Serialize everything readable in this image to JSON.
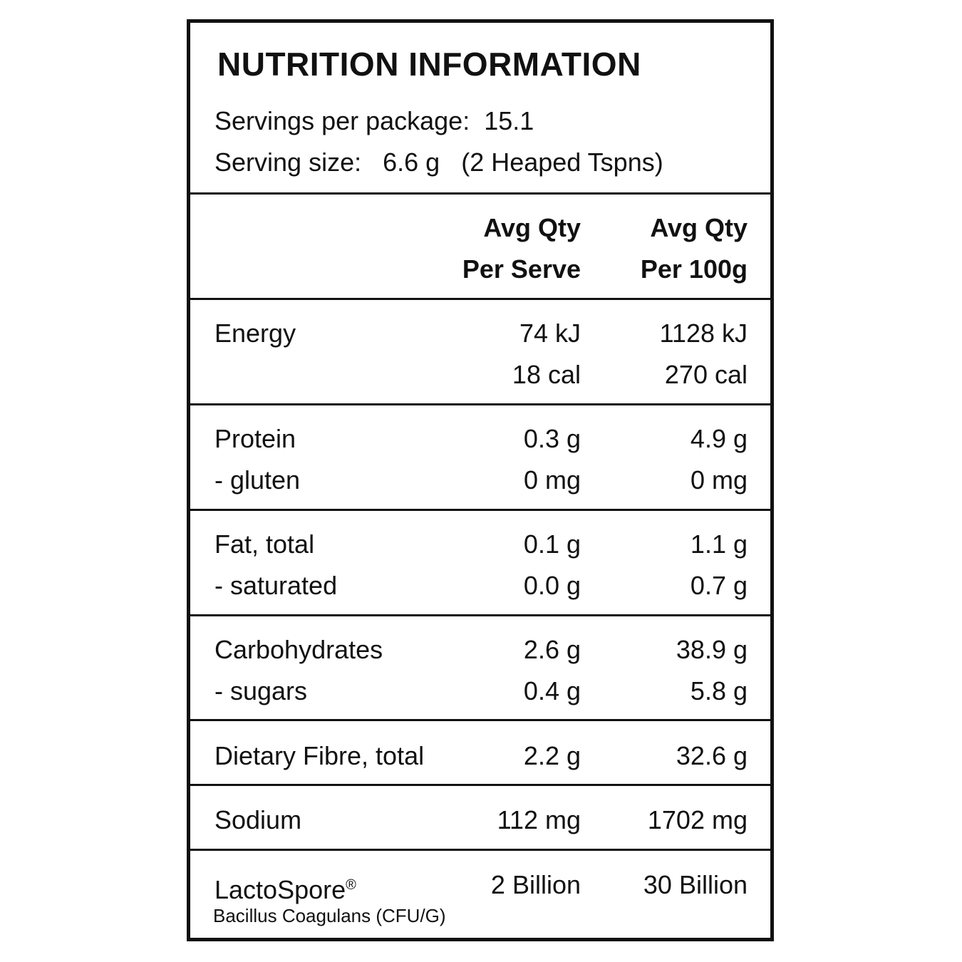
{
  "title": "NUTRITION INFORMATION",
  "servings_label": "Servings per package:",
  "servings_value": "15.1",
  "serving_size_label": "Serving size:",
  "serving_size_value": "6.6 g",
  "serving_size_note": "(2 Heaped Tspns)",
  "columns": [
    {
      "line1": "Avg Qty",
      "line2": "Per Serve"
    },
    {
      "line1": "Avg Qty",
      "line2": "Per 100g"
    }
  ],
  "rows": [
    {
      "label": "Energy",
      "serve": "74 kJ",
      "per100": "1128 kJ",
      "label2": "",
      "serve2": "18 cal",
      "per1002": "270 cal"
    },
    {
      "label": "Protein",
      "serve": "0.3 g",
      "per100": "4.9 g",
      "label2": "-  gluten",
      "serve2": "0 mg",
      "per1002": "0 mg"
    },
    {
      "label": "Fat, total",
      "serve": "0.1 g",
      "per100": "1.1 g",
      "label2": "-  saturated",
      "serve2": "0.0 g",
      "per1002": "0.7 g"
    },
    {
      "label": "Carbohydrates",
      "serve": "2.6 g",
      "per100": "38.9 g",
      "label2": "-  sugars",
      "serve2": "0.4 g",
      "per1002": "5.8 g"
    },
    {
      "label": "Dietary Fibre, total",
      "serve": "2.2 g",
      "per100": "32.6 g"
    },
    {
      "label": "Sodium",
      "serve": "112 mg",
      "per100": "1702 mg"
    },
    {
      "label": "LactoSpore",
      "mark": "®",
      "serve": "2 Billion",
      "per100": "30 Billion",
      "sublabel": "Bacillus Coagulans (CFU/G)"
    }
  ]
}
